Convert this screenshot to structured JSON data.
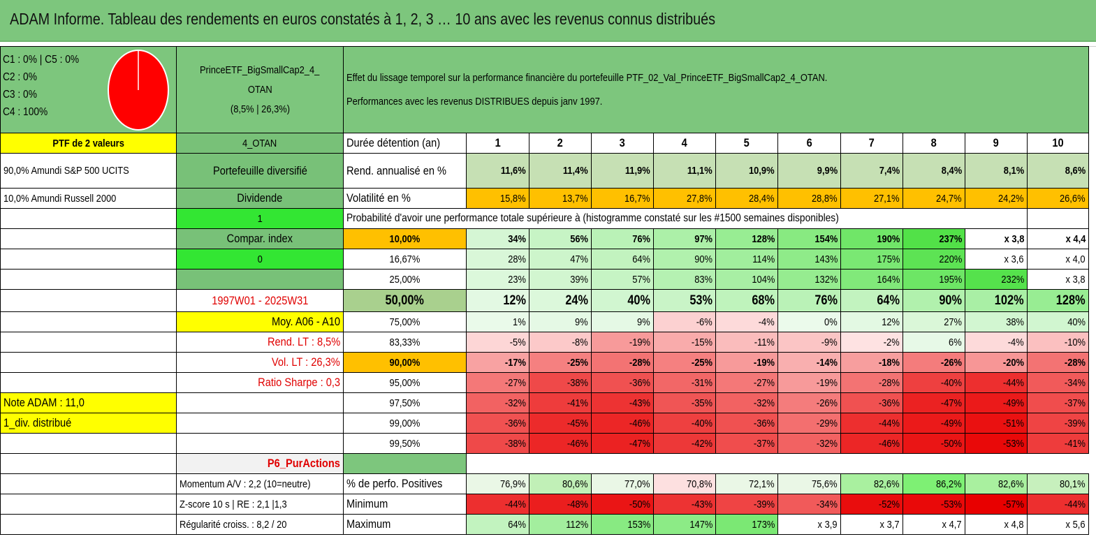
{
  "title": "ADAM Informe. Tableau des rendements en euros constatés à 1, 2, 3 … 10 ans avec les revenus connus distribués",
  "colors": {
    "header_green": "#7dc67d",
    "yellow": "#ffff00",
    "orange": "#ffc000",
    "red_text": "#e00000",
    "pie_red": "#ff0000",
    "lime": "#33e633"
  },
  "legend": {
    "line1": "C1 : 0% | C5 : 0%",
    "line2": "C2 : 0%",
    "line3": "C3 : 0%",
    "line4": "C4 : 100%"
  },
  "pie": {
    "C4": 100
  },
  "etf": {
    "name_line1": "PrinceETF_BigSmallCap2_4_",
    "name_line2": "OTAN",
    "name_line3": "(8,5% | 26,3%)"
  },
  "header_text": {
    "line1": "Effet du lissage temporel sur la performance financière du portefeuille PTF_02_Val_PrinceETF_BigSmallCap2_4_OTAN.",
    "line2": "Performances avec les revenus DISTRIBUES depuis janv 1997."
  },
  "left_col": {
    "ptf": "PTF de 2 valeurs",
    "asset1": "90,0% Amundi S&P 500 UCITS",
    "asset2": "10,0% Amundi Russell 2000"
  },
  "mid_col": {
    "code": "4_OTAN",
    "diversified": "Portefeuille diversifié",
    "dividend": "Dividende",
    "one": "1",
    "compar": "Compar. index",
    "zero": "0",
    "period": "1997W01 - 2025W31",
    "moy": "Moy. A06 - A10",
    "rend_lt": "Rend. LT : 8,5%",
    "vol_lt": "Vol. LT : 26,3%",
    "sharpe": "Ratio Sharpe : 0,3",
    "note": "Note ADAM : 11,0",
    "div": "1_div. distribué",
    "p6": "P6_PurActions",
    "momentum": "Momentum A/V : 2,2 (10=neutre)",
    "zscore": "Z-score 10 s | RE : 2,1 |1,3",
    "regularite": "Régularité croiss. : 8,2 / 20"
  },
  "table": {
    "duration_label": "Durée détention (an)",
    "years": [
      "1",
      "2",
      "3",
      "4",
      "5",
      "6",
      "7",
      "8",
      "9",
      "10"
    ],
    "rend_label": "Rend. annualisé en %",
    "rend": [
      "11,6%",
      "11,4%",
      "11,9%",
      "11,1%",
      "10,9%",
      "9,9%",
      "7,4%",
      "8,4%",
      "8,1%",
      "8,6%"
    ],
    "vol_label": "Volatilité en %",
    "vol": [
      "15,8%",
      "13,7%",
      "16,7%",
      "27,8%",
      "28,4%",
      "28,8%",
      "27,1%",
      "24,7%",
      "24,2%",
      "26,6%"
    ],
    "prob_label": "Probabilité d'avoir une performance totale supérieure à (histogramme constaté sur les #1500 semaines disponibles)",
    "quantiles": [
      {
        "label": "10,00%",
        "values": [
          "34%",
          "56%",
          "76%",
          "97%",
          "128%",
          "154%",
          "190%",
          "237%",
          "x 3,8",
          "x 4,4"
        ]
      },
      {
        "label": "16,67%",
        "values": [
          "28%",
          "47%",
          "64%",
          "90%",
          "114%",
          "143%",
          "175%",
          "220%",
          "x 3,6",
          "x 4,0"
        ]
      },
      {
        "label": "25,00%",
        "values": [
          "23%",
          "39%",
          "57%",
          "83%",
          "104%",
          "132%",
          "164%",
          "195%",
          "232%",
          "x 3,8"
        ]
      },
      {
        "label": "50,00%",
        "values": [
          "12%",
          "24%",
          "40%",
          "53%",
          "68%",
          "76%",
          "64%",
          "90%",
          "102%",
          "128%"
        ]
      },
      {
        "label": "75,00%",
        "values": [
          "1%",
          "9%",
          "9%",
          "-6%",
          "-4%",
          "0%",
          "12%",
          "27%",
          "38%",
          "40%"
        ]
      },
      {
        "label": "83,33%",
        "values": [
          "-5%",
          "-8%",
          "-19%",
          "-15%",
          "-11%",
          "-9%",
          "-2%",
          "6%",
          "-4%",
          "-10%"
        ]
      },
      {
        "label": "90,00%",
        "values": [
          "-17%",
          "-25%",
          "-28%",
          "-25%",
          "-19%",
          "-14%",
          "-18%",
          "-26%",
          "-20%",
          "-28%"
        ]
      },
      {
        "label": "95,00%",
        "values": [
          "-27%",
          "-38%",
          "-36%",
          "-31%",
          "-27%",
          "-19%",
          "-28%",
          "-40%",
          "-44%",
          "-34%"
        ]
      },
      {
        "label": "97,50%",
        "values": [
          "-32%",
          "-41%",
          "-43%",
          "-35%",
          "-32%",
          "-26%",
          "-36%",
          "-47%",
          "-49%",
          "-37%"
        ]
      },
      {
        "label": "99,00%",
        "values": [
          "-36%",
          "-45%",
          "-46%",
          "-40%",
          "-36%",
          "-29%",
          "-44%",
          "-49%",
          "-51%",
          "-39%"
        ]
      },
      {
        "label": "99,50%",
        "values": [
          "-38%",
          "-46%",
          "-47%",
          "-42%",
          "-37%",
          "-32%",
          "-46%",
          "-50%",
          "-53%",
          "-41%"
        ]
      }
    ],
    "pos_label": "% de perfo. Positives",
    "pos": [
      "76,9%",
      "80,6%",
      "77,0%",
      "70,8%",
      "72,1%",
      "75,6%",
      "82,6%",
      "86,2%",
      "82,6%",
      "80,1%"
    ],
    "min_label": "Minimum",
    "min": [
      "-44%",
      "-48%",
      "-50%",
      "-43%",
      "-39%",
      "-34%",
      "-52%",
      "-53%",
      "-57%",
      "-44%"
    ],
    "max_label": "Maximum",
    "max": [
      "64%",
      "112%",
      "153%",
      "147%",
      "173%",
      "x 3,9",
      "x 3,7",
      "x 4,7",
      "x 4,8",
      "x 5,6"
    ]
  }
}
